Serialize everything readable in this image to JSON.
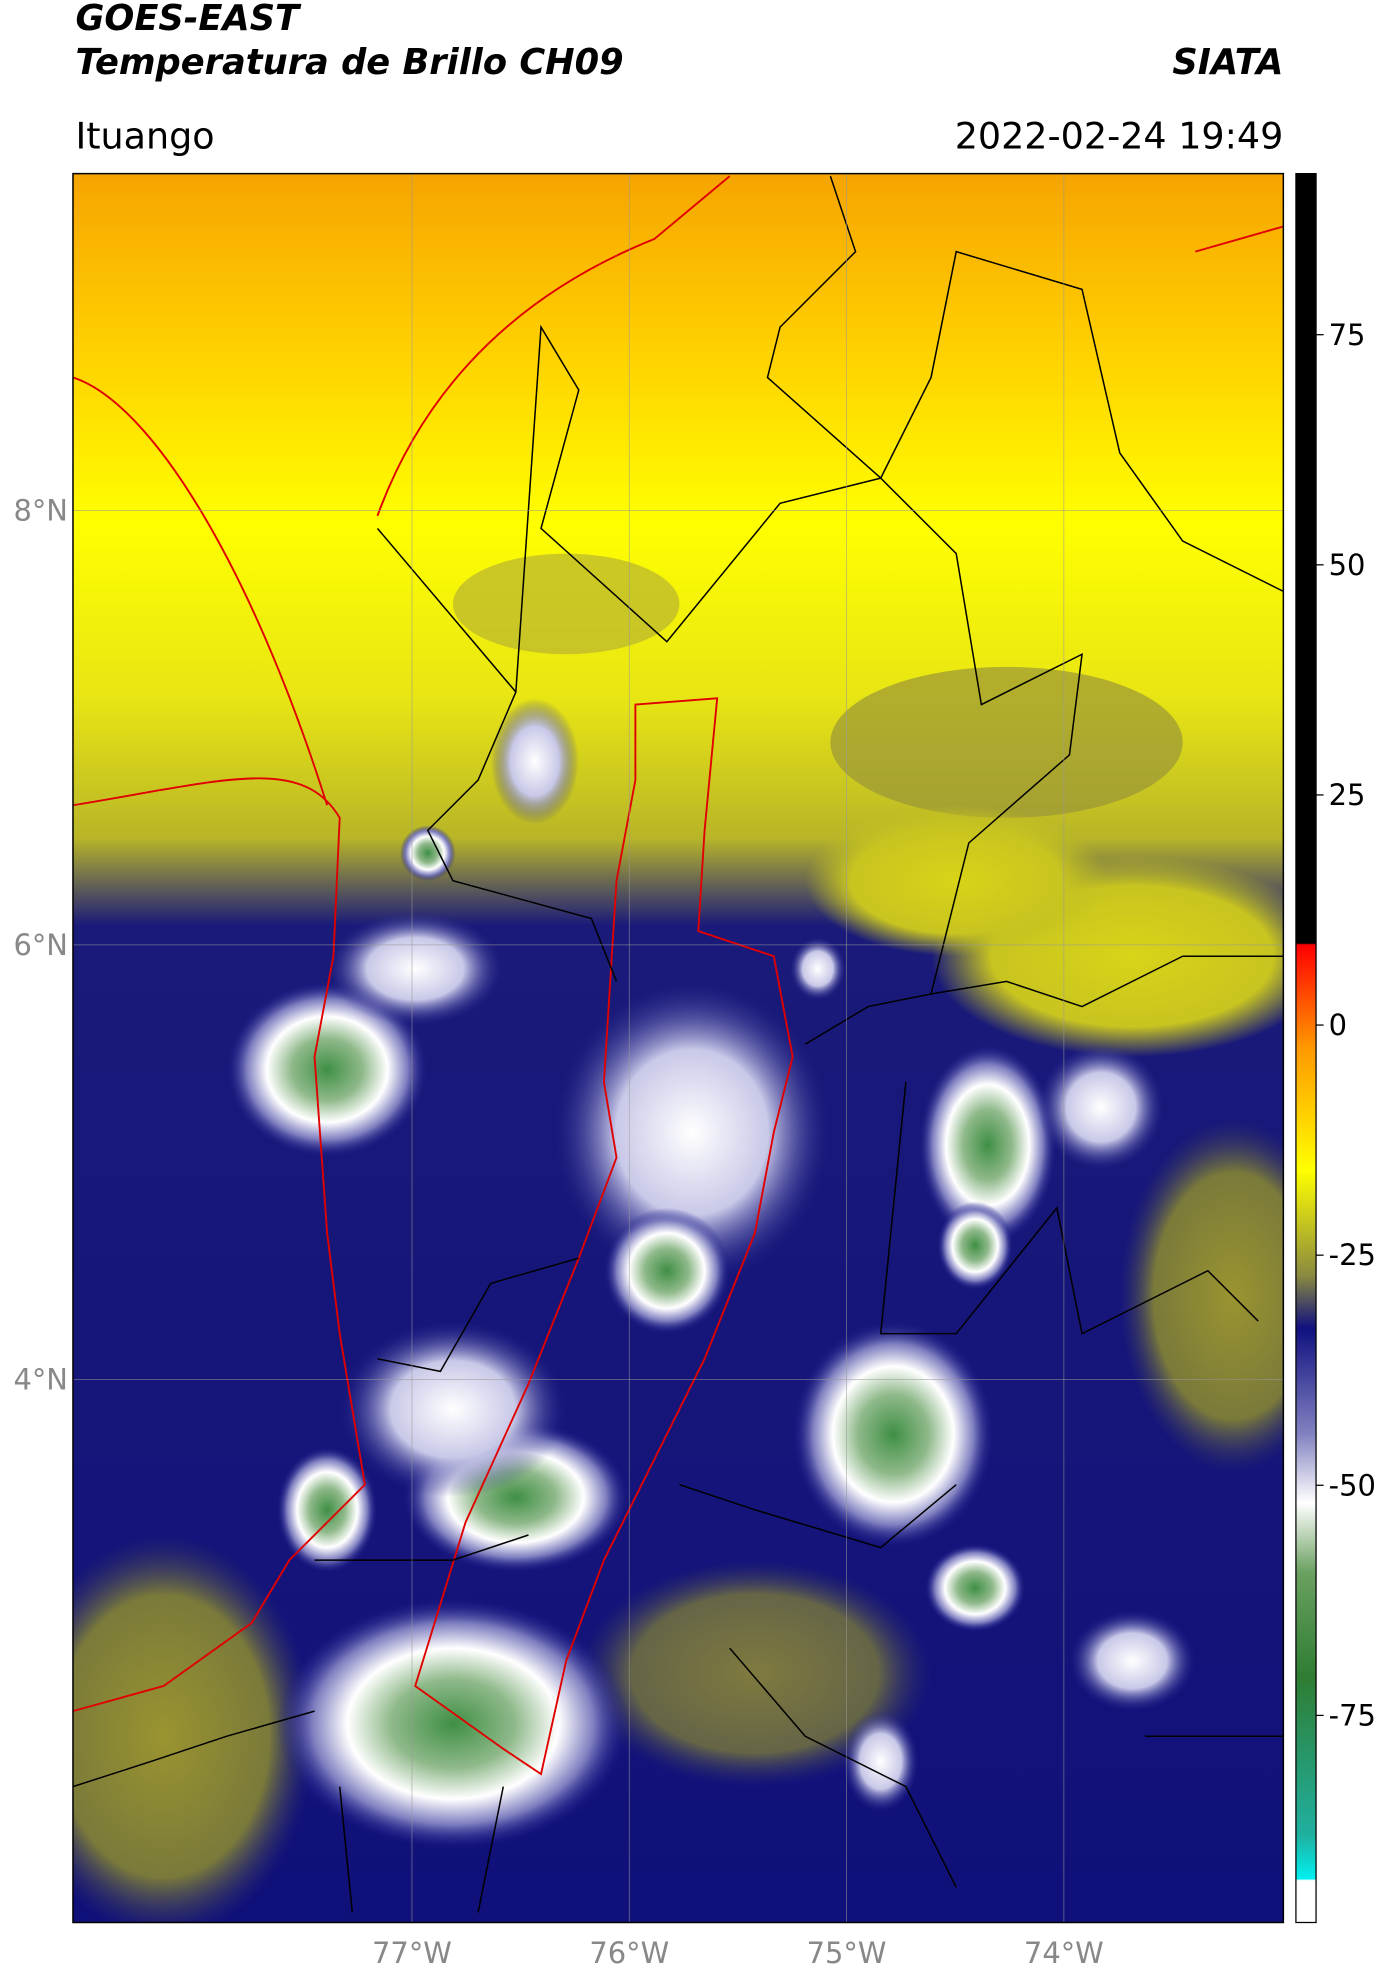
{
  "header": {
    "title": "GOES-EAST",
    "subtitle": "Temperatura de Brillo CH09",
    "source": "SIATA",
    "location": "Ituango",
    "datetime": "2022-02-24 19:49"
  },
  "map": {
    "latlim": [
      1.5,
      9.55
    ],
    "lonlim": [
      -78.56,
      -72.99
    ],
    "yticks": [
      {
        "value": 8,
        "label": "8°N"
      },
      {
        "value": 6,
        "label": "6°N"
      },
      {
        "value": 4,
        "label": "4°N"
      }
    ],
    "xticks": [
      {
        "value": -77,
        "label": "77°W"
      },
      {
        "value": -76,
        "label": "76°W"
      },
      {
        "value": -75,
        "label": "75°W"
      },
      {
        "value": -74,
        "label": "74°W"
      }
    ],
    "grid": true
  },
  "colorbar": {
    "lim": [
      -97.5,
      92.5
    ],
    "ticks": [
      75,
      50,
      25,
      0,
      -25,
      -50,
      -75
    ]
  }
}
